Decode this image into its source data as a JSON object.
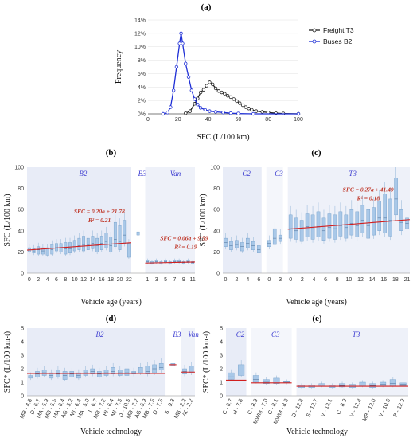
{
  "chart_data": [
    {
      "id": "a",
      "panel_label": "(a)",
      "type": "line",
      "xlabel": "SFC (L/100 km)",
      "ylabel": "Frequency",
      "xlim": [
        0,
        100
      ],
      "ylim": [
        0,
        14
      ],
      "xticks": [
        0,
        20,
        40,
        60,
        80,
        100
      ],
      "yticks": [
        "0%",
        "2%",
        "4%",
        "6%",
        "8%",
        "10%",
        "12%",
        "14%"
      ],
      "legend_position": "top-right",
      "series": [
        {
          "name": "Freight T3",
          "color": "#222222",
          "points": [
            [
              25,
              0.1
            ],
            [
              28,
              0.4
            ],
            [
              31,
              1.5
            ],
            [
              33,
              2.3
            ],
            [
              35,
              3.2
            ],
            [
              37,
              3.6
            ],
            [
              39,
              4.2
            ],
            [
              41,
              4.7
            ],
            [
              43,
              4.4
            ],
            [
              45,
              3.8
            ],
            [
              47,
              3.4
            ],
            [
              49,
              3.2
            ],
            [
              51,
              3.0
            ],
            [
              53,
              2.7
            ],
            [
              55,
              2.5
            ],
            [
              57,
              2.2
            ],
            [
              59,
              1.9
            ],
            [
              61,
              1.6
            ],
            [
              63,
              1.3
            ],
            [
              65,
              1.0
            ],
            [
              67,
              0.8
            ],
            [
              69,
              0.6
            ],
            [
              72,
              0.4
            ],
            [
              76,
              0.3
            ],
            [
              80,
              0.2
            ],
            [
              85,
              0.1
            ],
            [
              90,
              0.05
            ],
            [
              100,
              0.0
            ]
          ]
        },
        {
          "name": "Buses B2",
          "color": "#1f2fd6",
          "points": [
            [
              10,
              0.0
            ],
            [
              13,
              0.2
            ],
            [
              15,
              1.0
            ],
            [
              17,
              3.5
            ],
            [
              19,
              7.0
            ],
            [
              21,
              10.5
            ],
            [
              22,
              12.0
            ],
            [
              23,
              10.5
            ],
            [
              25,
              7.5
            ],
            [
              27,
              5.5
            ],
            [
              29,
              3.5
            ],
            [
              31,
              2.2
            ],
            [
              33,
              1.4
            ],
            [
              35,
              0.9
            ],
            [
              38,
              0.6
            ],
            [
              41,
              0.4
            ],
            [
              45,
              0.3
            ],
            [
              50,
              0.2
            ],
            [
              55,
              0.1
            ],
            [
              60,
              0.05
            ],
            [
              70,
              0.0
            ],
            [
              100,
              0.0
            ]
          ]
        }
      ]
    },
    {
      "id": "b",
      "panel_label": "(b)",
      "type": "box",
      "xlabel": "Vehicle age (years)",
      "ylabel": "SFC (L/100 km)",
      "ylim": [
        0,
        100
      ],
      "yticks": [
        0,
        20,
        40,
        60,
        80,
        100
      ],
      "groups": [
        {
          "name": "B2",
          "xticks": [
            "0",
            "2",
            "4",
            "6",
            "8",
            "10",
            "12",
            "14",
            "16",
            "18",
            "20",
            "22"
          ],
          "boxes": [
            [
              20,
              22,
              24
            ],
            [
              19,
              21,
              23
            ],
            [
              18,
              22,
              25
            ],
            [
              18,
              21,
              24
            ],
            [
              17,
              20,
              24
            ],
            [
              18,
              22,
              27
            ],
            [
              21,
              24,
              28
            ],
            [
              20,
              24,
              28
            ],
            [
              18,
              23,
              29
            ],
            [
              19,
              23,
              29
            ],
            [
              21,
              25,
              31
            ],
            [
              22,
              26,
              33
            ],
            [
              21,
              27,
              35
            ],
            [
              22,
              27,
              33
            ],
            [
              23,
              28,
              35
            ],
            [
              20,
              26,
              33
            ],
            [
              22,
              28,
              35
            ],
            [
              24,
              30,
              38
            ],
            [
              20,
              26,
              34
            ],
            [
              25,
              32,
              48
            ],
            [
              22,
              30,
              45
            ],
            [
              28,
              36,
              50
            ],
            [
              15,
              20,
              28
            ]
          ]
        },
        {
          "name": "B3",
          "xticks": [],
          "boxes": [
            [
              36,
              38,
              39
            ]
          ]
        },
        {
          "name": "Van",
          "xticks": [
            "1",
            "3",
            "5",
            "7",
            "9",
            "11"
          ],
          "boxes": [
            [
              10,
              11,
              12
            ],
            [
              9,
              10,
              11
            ],
            [
              10,
              11,
              12
            ],
            [
              9,
              10,
              11
            ],
            [
              10,
              11,
              12
            ],
            [
              9,
              10,
              11
            ],
            [
              10,
              11,
              12
            ],
            [
              10,
              11,
              12
            ],
            [
              9,
              10,
              11
            ],
            [
              10,
              11,
              12
            ],
            [
              9,
              10,
              11
            ]
          ]
        }
      ],
      "trendlines": [
        {
          "group": "B2",
          "equation": "SFC = 0.20a + 21.78",
          "r2": "R² = 0.21"
        },
        {
          "group": "Van",
          "equation": "SFC = 0.06a + 9.59",
          "r2": "R² = 0.19"
        }
      ]
    },
    {
      "id": "c",
      "panel_label": "(c)",
      "type": "box",
      "xlabel": "Vehicle age (years)",
      "ylabel": "SFC (L/100 km)",
      "ylim": [
        0,
        100
      ],
      "yticks": [
        0,
        20,
        40,
        60,
        80,
        100
      ],
      "groups": [
        {
          "name": "C2",
          "xticks": [
            "0",
            "2",
            "4",
            "6"
          ],
          "boxes": [
            [
              25,
              29,
              33
            ],
            [
              22,
              26,
              30
            ],
            [
              24,
              27,
              31
            ],
            [
              21,
              25,
              29
            ],
            [
              24,
              28,
              33
            ],
            [
              22,
              26,
              30
            ],
            [
              19,
              22,
              26
            ]
          ]
        },
        {
          "name": "C3",
          "xticks": [
            "0",
            "3"
          ],
          "boxes": [
            [
              25,
              28,
              31
            ],
            [
              27,
              33,
              42
            ],
            [
              30,
              33,
              36
            ]
          ]
        },
        {
          "name": "T3",
          "xticks": [
            "0",
            "2",
            "4",
            "6",
            "8",
            "10",
            "12",
            "14",
            "16",
            "18",
            "21"
          ],
          "boxes": [
            [
              33,
              42,
              55
            ],
            [
              32,
              40,
              52
            ],
            [
              30,
              38,
              50
            ],
            [
              34,
              44,
              56
            ],
            [
              32,
              42,
              55
            ],
            [
              34,
              44,
              58
            ],
            [
              31,
              40,
              52
            ],
            [
              33,
              43,
              56
            ],
            [
              32,
              42,
              55
            ],
            [
              35,
              45,
              58
            ],
            [
              33,
              43,
              55
            ],
            [
              36,
              47,
              60
            ],
            [
              34,
              45,
              58
            ],
            [
              38,
              50,
              64
            ],
            [
              33,
              45,
              60
            ],
            [
              36,
              48,
              62
            ],
            [
              40,
              52,
              68
            ],
            [
              38,
              52,
              75
            ],
            [
              35,
              50,
              70
            ],
            [
              55,
              70,
              90
            ],
            [
              40,
              48,
              60
            ],
            [
              42,
              47,
              52
            ]
          ]
        }
      ],
      "trendlines": [
        {
          "group": "T3",
          "equation": "SFC = 0.27a + 41.49",
          "r2": "R² = 0.18"
        }
      ]
    },
    {
      "id": "d",
      "panel_label": "(d)",
      "type": "box",
      "xlabel": "Vehicle technology",
      "ylabel": "SFC* (L/100 km-t)",
      "ylim": [
        0,
        5
      ],
      "yticks": [
        0,
        1,
        2,
        3,
        4,
        5
      ],
      "groups": [
        {
          "name": "B2",
          "xticks": [
            "MB - 4.8",
            "D - 6.7",
            "MA - 5.9",
            "MB - 5.5",
            "MA - 6.4",
            "AG - 5.2",
            "MI - 6.4",
            "MA - 5.0",
            "I - 6.7",
            "MB - 7.2",
            "HI - 6.4",
            "MI - 7.5",
            "D - 10.5",
            "MB - 7.2",
            "AG - 5.9",
            "MB - 7.5",
            "D - 7.5"
          ],
          "boxes": [
            [
              1.3,
              1.4,
              1.5
            ],
            [
              1.4,
              1.6,
              1.8
            ],
            [
              1.5,
              1.7,
              1.9
            ],
            [
              1.3,
              1.5,
              1.7
            ],
            [
              1.4,
              1.6,
              1.9
            ],
            [
              1.2,
              1.5,
              1.8
            ],
            [
              1.4,
              1.6,
              1.8
            ],
            [
              1.3,
              1.5,
              1.7
            ],
            [
              1.5,
              1.7,
              1.9
            ],
            [
              1.6,
              1.8,
              2.0
            ],
            [
              1.4,
              1.6,
              1.8
            ],
            [
              1.5,
              1.7,
              1.9
            ],
            [
              1.6,
              1.8,
              2.1
            ],
            [
              1.5,
              1.7,
              1.9
            ],
            [
              1.5,
              1.7,
              2.0
            ],
            [
              1.6,
              1.7,
              1.8
            ],
            [
              1.7,
              1.9,
              2.1
            ],
            [
              1.6,
              1.8,
              2.2
            ],
            [
              1.7,
              2.0,
              2.3
            ],
            [
              1.9,
              2.1,
              2.4
            ]
          ]
        },
        {
          "name": "B3",
          "xticks": [
            "S - 9.3"
          ],
          "boxes": [
            [
              2.2,
              2.3,
              2.4
            ]
          ]
        },
        {
          "name": "Van",
          "xticks": [
            "MB - 2.2",
            "VK - 2.2"
          ],
          "boxes": [
            [
              1.6,
              1.8,
              2.0
            ],
            [
              1.7,
              1.9,
              2.2
            ]
          ]
        }
      ],
      "reference_lines": [
        {
          "group": "B2",
          "y": 1.65
        },
        {
          "group": "B3",
          "y": 2.3
        },
        {
          "group": "Van",
          "y": 1.75
        }
      ]
    },
    {
      "id": "e",
      "panel_label": "(e)",
      "type": "box",
      "xlabel": "Vehicle technology",
      "ylabel": "SFC* (L/100 km-t)",
      "ylim": [
        0,
        5
      ],
      "yticks": [
        0,
        1,
        2,
        3,
        4,
        5
      ],
      "groups": [
        {
          "name": "C2",
          "xticks": [
            "C - 6.7",
            "H - 7.8"
          ],
          "boxes": [
            [
              1.2,
              1.4,
              1.7
            ],
            [
              1.5,
              1.9,
              2.3
            ]
          ]
        },
        {
          "name": "C3",
          "xticks": [
            "C - 8.9",
            "MWM - 7.0",
            "C - 8.1",
            "MWM - 8.8"
          ],
          "boxes": [
            [
              1.0,
              1.2,
              1.5
            ],
            [
              0.9,
              1.0,
              1.2
            ],
            [
              0.9,
              1.1,
              1.3
            ],
            [
              0.95,
              1.0,
              1.05
            ]
          ]
        },
        {
          "name": "T3",
          "xticks": [
            "D - 12.8",
            "S - 12.7",
            "V - 12.1",
            "C - 8.9",
            "V - 12.8",
            "MB - 12.0",
            "V - 10.6",
            "P - 12.9"
          ],
          "boxes": [
            [
              0.6,
              0.7,
              0.8
            ],
            [
              0.6,
              0.7,
              0.8
            ],
            [
              0.7,
              0.8,
              0.9
            ],
            [
              0.6,
              0.7,
              0.8
            ],
            [
              0.65,
              0.75,
              0.9
            ],
            [
              0.6,
              0.7,
              0.85
            ],
            [
              0.7,
              0.8,
              1.0
            ],
            [
              0.6,
              0.75,
              0.9
            ],
            [
              0.7,
              0.85,
              1.0
            ],
            [
              0.7,
              0.9,
              1.2
            ],
            [
              0.75,
              0.85,
              0.95
            ]
          ]
        }
      ],
      "reference_lines": [
        {
          "group": "C2",
          "y": 1.15
        },
        {
          "group": "C3",
          "y": 0.95
        },
        {
          "group": "T3",
          "y": 0.7
        }
      ]
    }
  ]
}
